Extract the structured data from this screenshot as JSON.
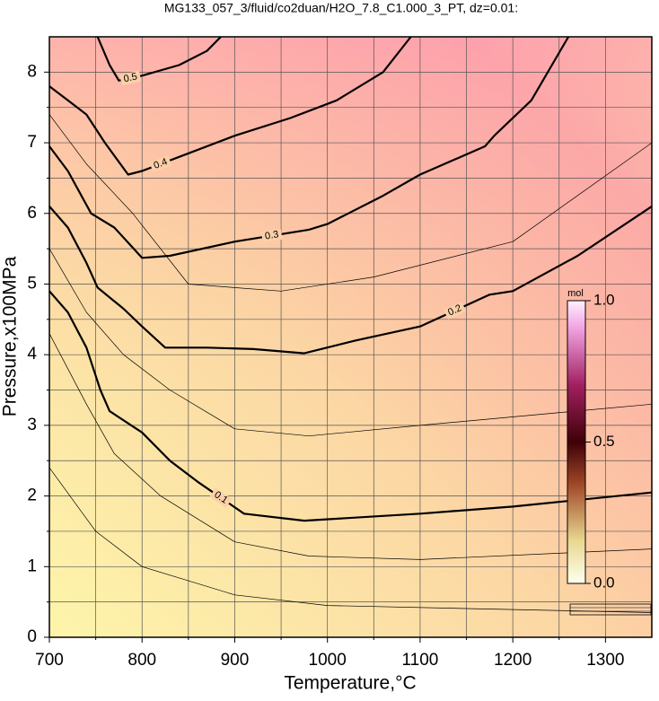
{
  "chart_data": {
    "type": "contour",
    "title": "MG133_057_3/fluid/co2duan/H2O_7.8_C1.000_3_PT, dz=0.01:",
    "x_label": "Temperature,°C",
    "y_label": "Pressure,x100MPa",
    "xlim": [
      700,
      1350
    ],
    "ylim": [
      0,
      8.5
    ],
    "xticks": [
      700,
      800,
      900,
      1000,
      1100,
      1200,
      1300
    ],
    "yticks": [
      0,
      1,
      2,
      3,
      4,
      5,
      6,
      7,
      8
    ],
    "xminorticks": [
      750,
      850,
      950,
      1050,
      1150,
      1250
    ],
    "yminorticks": [
      0.5,
      1.5,
      2.5,
      3.5,
      4.5,
      5.5,
      6.5,
      7.5
    ],
    "grid": true,
    "contours": [
      {
        "label": "0.1",
        "x": [
          700,
          720,
          740,
          755,
          765,
          800,
          830,
          860,
          910,
          975,
          1100,
          1200,
          1350
        ],
        "y": [
          4.9,
          4.6,
          4.1,
          3.5,
          3.2,
          2.9,
          2.5,
          2.2,
          1.75,
          1.65,
          1.75,
          1.85,
          2.05
        ]
      },
      {
        "label": "0.2",
        "x": [
          700,
          720,
          740,
          752,
          780,
          800,
          825,
          870,
          920,
          975,
          1030,
          1100,
          1175,
          1200,
          1270,
          1350
        ],
        "y": [
          6.1,
          5.8,
          5.3,
          4.95,
          4.65,
          4.4,
          4.1,
          4.1,
          4.08,
          4.02,
          4.2,
          4.4,
          4.85,
          4.9,
          5.4,
          6.1
        ]
      },
      {
        "label": "0.3",
        "x": [
          700,
          720,
          745,
          770,
          800,
          830,
          900,
          980,
          1000,
          1060,
          1100,
          1170,
          1180,
          1220,
          1260
        ],
        "y": [
          6.95,
          6.6,
          6.0,
          5.8,
          5.37,
          5.4,
          5.6,
          5.77,
          5.85,
          6.25,
          6.55,
          6.95,
          7.1,
          7.6,
          8.5
        ]
      },
      {
        "label": "0.4",
        "x": [
          700,
          720,
          740,
          760,
          785,
          800,
          840,
          900,
          960,
          1010,
          1060,
          1090
        ],
        "y": [
          7.8,
          7.6,
          7.4,
          7.0,
          6.55,
          6.6,
          6.8,
          7.1,
          7.35,
          7.6,
          8.0,
          8.5
        ]
      },
      {
        "label": "0.5",
        "x": [
          752,
          765,
          775,
          800,
          840,
          870,
          885
        ],
        "y": [
          8.5,
          8.1,
          7.88,
          7.95,
          8.1,
          8.3,
          8.5
        ]
      },
      {
        "x": [
          700,
          740,
          770,
          820,
          900,
          980,
          1100,
          1350
        ],
        "y": [
          4.3,
          3.3,
          2.6,
          2.0,
          1.35,
          1.15,
          1.1,
          1.25
        ]
      },
      {
        "x": [
          700,
          750,
          800,
          900,
          1000,
          1350
        ],
        "y": [
          2.4,
          1.5,
          1.0,
          0.6,
          0.45,
          0.35
        ]
      },
      {
        "x": [
          700,
          740,
          780,
          830,
          900,
          980,
          1100,
          1350
        ],
        "y": [
          5.5,
          4.6,
          4.0,
          3.5,
          2.95,
          2.85,
          3.0,
          3.3
        ]
      },
      {
        "x": [
          700,
          740,
          790,
          850,
          950,
          1050,
          1200,
          1350
        ],
        "y": [
          7.4,
          6.7,
          6.0,
          5.0,
          4.9,
          5.1,
          5.6,
          7.0
        ]
      }
    ],
    "colorbar": {
      "label": "mol",
      "lim": [
        0,
        1
      ],
      "ticks": [
        {
          "value": 0,
          "label": "0.0"
        },
        {
          "value": 0.5,
          "label": "0.5"
        },
        {
          "value": 1,
          "label": "1.0"
        }
      ]
    }
  }
}
